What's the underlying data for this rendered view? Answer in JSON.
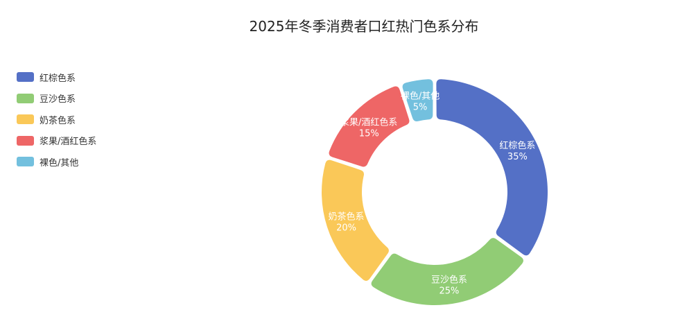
{
  "chart_data": {
    "type": "pie",
    "variant": "donut",
    "title": "2025年冬季消费者口红热门色系分布",
    "legend_position": "top-left",
    "slices": [
      {
        "name": "红棕色系",
        "value": 35,
        "label": "35%",
        "color": "#5470c6"
      },
      {
        "name": "豆沙色系",
        "value": 25,
        "label": "25%",
        "color": "#91cc75"
      },
      {
        "name": "奶茶色系",
        "value": 20,
        "label": "20%",
        "color": "#fac858"
      },
      {
        "name": "浆果/酒红色系",
        "value": 15,
        "label": "15%",
        "color": "#ee6666"
      },
      {
        "name": "裸色/其他",
        "value": 5,
        "label": "5%",
        "color": "#73c0de"
      }
    ]
  }
}
